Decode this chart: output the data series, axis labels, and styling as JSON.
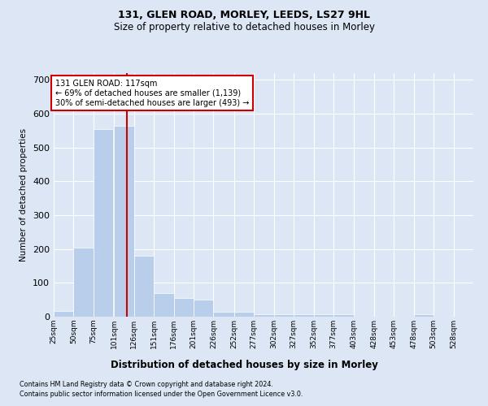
{
  "title1": "131, GLEN ROAD, MORLEY, LEEDS, LS27 9HL",
  "title2": "Size of property relative to detached houses in Morley",
  "xlabel": "Distribution of detached houses by size in Morley",
  "ylabel": "Number of detached properties",
  "footnote1": "Contains HM Land Registry data © Crown copyright and database right 2024.",
  "footnote2": "Contains public sector information licensed under the Open Government Licence v3.0.",
  "bar_left_edges": [
    25,
    50,
    75,
    101,
    126,
    151,
    176,
    201,
    226,
    252,
    277,
    302,
    327,
    352,
    377,
    403,
    428,
    453,
    478,
    503,
    528
  ],
  "bar_widths": [
    25,
    25,
    25,
    25,
    25,
    25,
    25,
    25,
    26,
    25,
    25,
    25,
    25,
    25,
    26,
    25,
    25,
    25,
    25,
    25,
    25
  ],
  "bar_heights": [
    18,
    205,
    555,
    565,
    180,
    70,
    55,
    50,
    15,
    15,
    8,
    8,
    8,
    8,
    8,
    0,
    0,
    0,
    8,
    0,
    0
  ],
  "bar_color": "#b8ceea",
  "property_line_x": 117,
  "property_line_color": "#cc0000",
  "ylim": [
    0,
    720
  ],
  "yticks": [
    0,
    100,
    200,
    300,
    400,
    500,
    600,
    700
  ],
  "xlim": [
    25,
    553
  ],
  "xtick_labels": [
    "25sqm",
    "50sqm",
    "75sqm",
    "101sqm",
    "126sqm",
    "151sqm",
    "176sqm",
    "201sqm",
    "226sqm",
    "252sqm",
    "277sqm",
    "302sqm",
    "327sqm",
    "352sqm",
    "377sqm",
    "403sqm",
    "428sqm",
    "453sqm",
    "478sqm",
    "503sqm",
    "528sqm"
  ],
  "xtick_positions": [
    25,
    50,
    75,
    101,
    126,
    151,
    176,
    201,
    226,
    252,
    277,
    302,
    327,
    352,
    377,
    403,
    428,
    453,
    478,
    503,
    528
  ],
  "annotation_line1": "131 GLEN ROAD: 117sqm",
  "annotation_line2": "← 69% of detached houses are smaller (1,139)",
  "annotation_line3": "30% of semi-detached houses are larger (493) →",
  "annotation_box_color": "#ffffff",
  "annotation_border_color": "#cc0000",
  "bg_color": "#dce6f5",
  "plot_bg_color": "#dce6f5",
  "grid_color": "#ffffff",
  "title1_fontsize": 9,
  "title2_fontsize": 8.5,
  "ylabel_fontsize": 7.5,
  "xlabel_fontsize": 8.5,
  "ytick_fontsize": 8,
  "xtick_fontsize": 6.5,
  "annot_fontsize": 7,
  "footnote_fontsize": 5.8
}
